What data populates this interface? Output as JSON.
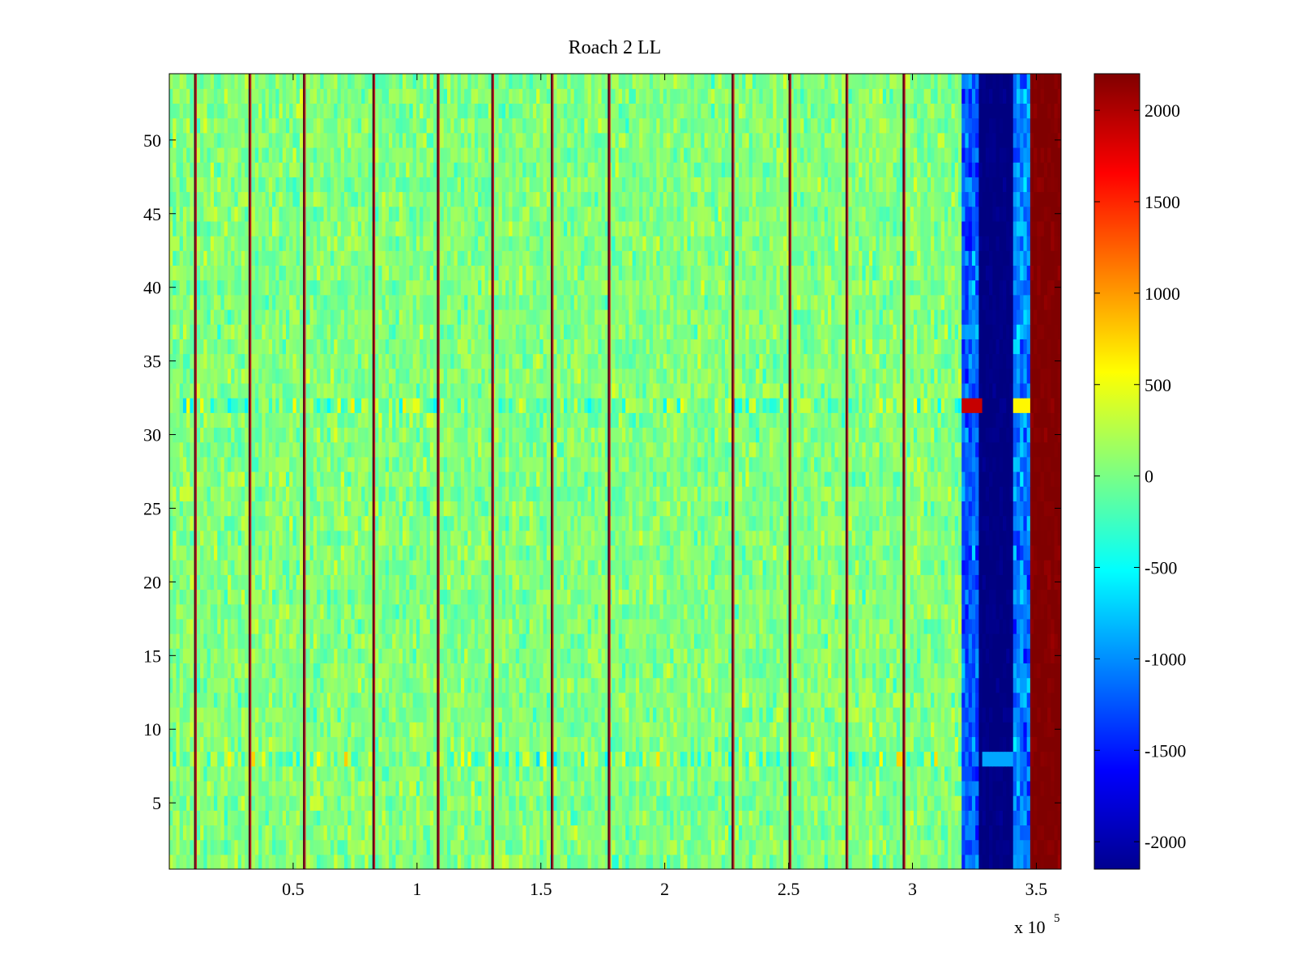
{
  "chart_data": {
    "type": "heatmap",
    "title": "Roach 2 LL",
    "xlabel": "",
    "ylabel": "",
    "x_exponent_label": "x 10",
    "x_exponent_power": "5",
    "xlim": [
      0,
      3.6
    ],
    "ylim": [
      0.5,
      54.5
    ],
    "rows": 54,
    "x_ticks": [
      0.5,
      1,
      1.5,
      2,
      2.5,
      3,
      3.5
    ],
    "x_tick_labels": [
      "0.5",
      "1",
      "1.5",
      "2",
      "2.5",
      "3",
      "3.5"
    ],
    "y_ticks": [
      5,
      10,
      15,
      20,
      25,
      30,
      35,
      40,
      45,
      50
    ],
    "y_tick_labels": [
      "5",
      "10",
      "15",
      "20",
      "25",
      "30",
      "35",
      "40",
      "45",
      "50"
    ],
    "colorbar": {
      "colormap": "jet",
      "clim": [
        -2150,
        2200
      ],
      "ticks": [
        2000,
        1500,
        1000,
        500,
        0,
        -500,
        -1000,
        -1500,
        -2000
      ],
      "tick_labels": [
        "2000",
        "1500",
        "1000",
        "500",
        "0",
        "-500",
        "-1000",
        "-1500",
        "-2000"
      ]
    },
    "vertical_spike_lines_x": [
      0.1,
      0.32,
      0.54,
      0.82,
      1.08,
      1.3,
      1.54,
      1.77,
      2.27,
      2.5,
      2.73,
      2.96
    ],
    "anomalous_rows": [
      32,
      8
    ],
    "background_range": [
      -700,
      700
    ],
    "regions": [
      {
        "x_range": [
          0,
          3.19
        ],
        "value_range": [
          -700,
          700
        ],
        "note": "noise"
      },
      {
        "x_range": [
          3.19,
          3.27
        ],
        "value_range": [
          -1700,
          -700
        ],
        "note": "blue band"
      },
      {
        "x_range": [
          3.27,
          3.4
        ],
        "value": -2150,
        "note": "saturated low"
      },
      {
        "x_range": [
          3.4,
          3.47
        ],
        "value_range": [
          -1600,
          -500
        ],
        "note": "blue band"
      },
      {
        "x_range": [
          3.47,
          3.6
        ],
        "value": 2200,
        "note": "saturated high"
      }
    ]
  }
}
